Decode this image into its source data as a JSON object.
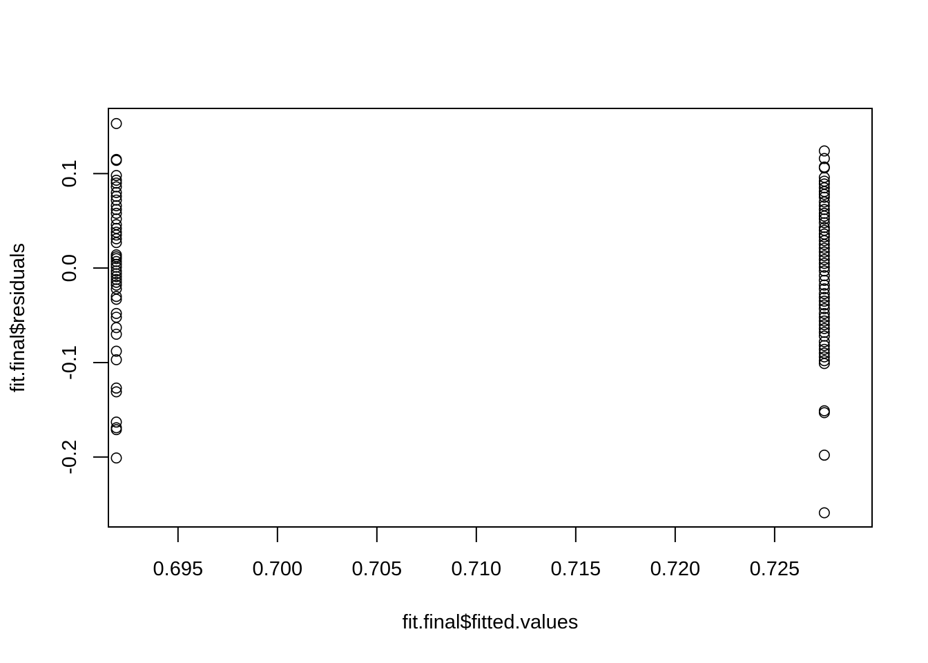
{
  "chart_data": {
    "type": "scatter",
    "title": "",
    "xlabel": "fit.final$fitted.values",
    "ylabel": "fit.final$residuals",
    "xlim": [
      0.6915,
      0.7299
    ],
    "ylim": [
      -0.274,
      0.169
    ],
    "x_ticks": [
      0.695,
      0.7,
      0.705,
      0.71,
      0.715,
      0.72,
      0.725
    ],
    "x_tick_labels": [
      "0.695",
      "0.700",
      "0.705",
      "0.710",
      "0.715",
      "0.720",
      "0.725"
    ],
    "y_ticks": [
      -0.2,
      -0.1,
      0.0,
      0.1
    ],
    "y_tick_labels": [
      "-0.2",
      "-0.1",
      "0.0",
      "0.1"
    ],
    "grid": false,
    "marker": "open-circle",
    "series": [
      {
        "x_value": 0.6919,
        "y": [
          0.153,
          0.115,
          0.114,
          0.098,
          0.093,
          0.09,
          0.086,
          0.08,
          0.076,
          0.072,
          0.066,
          0.062,
          0.058,
          0.052,
          0.046,
          0.042,
          0.038,
          0.035,
          0.031,
          0.027,
          0.014,
          0.012,
          0.01,
          0.007,
          0.004,
          0.001,
          -0.003,
          -0.006,
          -0.009,
          -0.012,
          -0.015,
          -0.018,
          -0.022,
          -0.03,
          -0.033,
          -0.048,
          -0.052,
          -0.063,
          -0.07,
          -0.088,
          -0.097,
          -0.127,
          -0.131,
          -0.163,
          -0.169,
          -0.171,
          -0.201
        ]
      },
      {
        "x_value": 0.7275,
        "y": [
          0.124,
          0.116,
          0.107,
          0.106,
          0.096,
          0.092,
          0.089,
          0.085,
          0.081,
          0.078,
          0.075,
          0.07,
          0.066,
          0.062,
          0.058,
          0.055,
          0.052,
          0.048,
          0.043,
          0.04,
          0.036,
          0.033,
          0.029,
          0.025,
          0.021,
          0.017,
          0.013,
          0.009,
          0.005,
          0.001,
          -0.003,
          -0.008,
          -0.013,
          -0.018,
          -0.022,
          -0.027,
          -0.031,
          -0.035,
          -0.039,
          -0.043,
          -0.048,
          -0.052,
          -0.056,
          -0.06,
          -0.064,
          -0.068,
          -0.072,
          -0.078,
          -0.082,
          -0.086,
          -0.09,
          -0.094,
          -0.098,
          -0.101,
          -0.151,
          -0.153,
          -0.198,
          -0.259
        ]
      }
    ]
  }
}
